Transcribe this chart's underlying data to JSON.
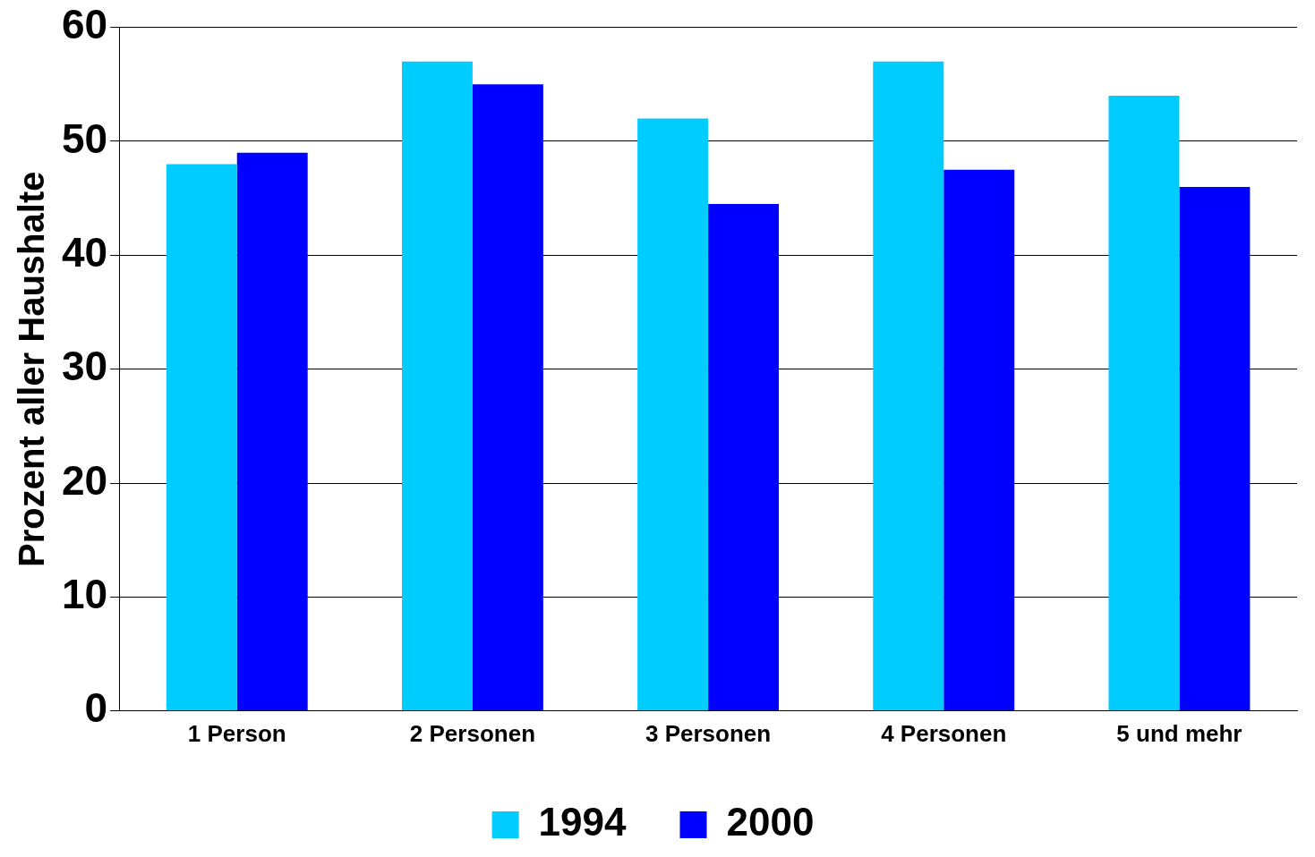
{
  "chart_data": {
    "type": "bar",
    "ylabel": "Prozent aller Haushalte",
    "categories": [
      "1 Person",
      "2 Personen",
      "3 Personen",
      "4 Personen",
      "5 und mehr"
    ],
    "series": [
      {
        "name": "1994",
        "color": "#00ccff",
        "values": [
          48,
          57,
          52,
          57,
          54
        ]
      },
      {
        "name": "2000",
        "color": "#0000ff",
        "values": [
          49,
          55,
          44.5,
          47.5,
          46
        ]
      }
    ],
    "ylim": [
      0,
      60
    ],
    "yticks": [
      0,
      10,
      20,
      30,
      40,
      50,
      60
    ],
    "grid": "y",
    "legend": "bottom"
  }
}
